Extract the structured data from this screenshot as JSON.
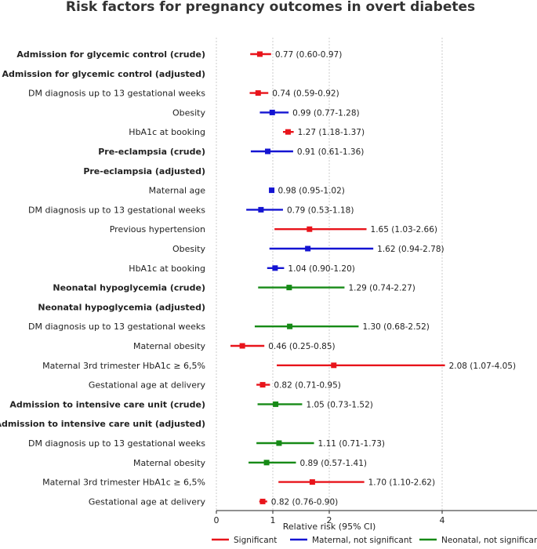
{
  "chart_data": {
    "type": "forest",
    "title": "Risk factors for pregnancy outcomes in overt diabetes",
    "xlabel": "Relative risk (95% CI)",
    "xlim": [
      0,
      4.75
    ],
    "xticks": [
      0,
      1,
      2,
      4
    ],
    "grid": true,
    "reference_line": 1,
    "legend_position": "bottom",
    "legend": [
      {
        "key": "sig",
        "label": "Significant",
        "color": "#e8141b"
      },
      {
        "key": "mat",
        "label": "Maternal, not significant",
        "color": "#1414d2"
      },
      {
        "key": "neo",
        "label": "Neonatal, not significant",
        "color": "#168a16"
      }
    ],
    "rows": [
      {
        "label": "Admission for glycemic control (crude)",
        "header": true,
        "est": 0.77,
        "lo": 0.6,
        "hi": 0.97,
        "text": "0.77 (0.60-0.97)",
        "cat": "sig"
      },
      {
        "label": "Admission for glycemic control (adjusted)",
        "header": true
      },
      {
        "label": "DM diagnosis up to 13 gestational weeks",
        "est": 0.74,
        "lo": 0.59,
        "hi": 0.92,
        "text": "0.74 (0.59-0.92)",
        "cat": "sig"
      },
      {
        "label": "Obesity",
        "est": 0.99,
        "lo": 0.77,
        "hi": 1.28,
        "text": "0.99 (0.77-1.28)",
        "cat": "mat"
      },
      {
        "label": "HbA1c at booking",
        "est": 1.27,
        "lo": 1.18,
        "hi": 1.37,
        "text": "1.27 (1.18-1.37)",
        "cat": "sig"
      },
      {
        "label": "Pre-eclampsia (crude)",
        "header": true,
        "est": 0.91,
        "lo": 0.61,
        "hi": 1.36,
        "text": "0.91 (0.61-1.36)",
        "cat": "mat"
      },
      {
        "label": "Pre-eclampsia (adjusted)",
        "header": true
      },
      {
        "label": "Maternal age",
        "est": 0.98,
        "lo": 0.95,
        "hi": 1.02,
        "text": "0.98 (0.95-1.02)",
        "cat": "mat"
      },
      {
        "label": "DM diagnosis up to 13 gestational weeks",
        "est": 0.79,
        "lo": 0.53,
        "hi": 1.18,
        "text": "0.79 (0.53-1.18)",
        "cat": "mat"
      },
      {
        "label": "Previous hypertension",
        "est": 1.65,
        "lo": 1.03,
        "hi": 2.66,
        "text": "1.65 (1.03-2.66)",
        "cat": "sig"
      },
      {
        "label": "Obesity",
        "est": 1.62,
        "lo": 0.94,
        "hi": 2.78,
        "text": "1.62 (0.94-2.78)",
        "cat": "mat"
      },
      {
        "label": "HbA1c at booking",
        "est": 1.04,
        "lo": 0.9,
        "hi": 1.2,
        "text": "1.04 (0.90-1.20)",
        "cat": "mat"
      },
      {
        "label": "Neonatal hypoglycemia (crude)",
        "header": true,
        "est": 1.29,
        "lo": 0.74,
        "hi": 2.27,
        "text": "1.29 (0.74-2.27)",
        "cat": "neo"
      },
      {
        "label": "Neonatal hypoglycemia (adjusted)",
        "header": true
      },
      {
        "label": "DM diagnosis up to 13 gestational weeks",
        "est": 1.3,
        "lo": 0.68,
        "hi": 2.52,
        "text": "1.30 (0.68-2.52)",
        "cat": "neo"
      },
      {
        "label": "Maternal obesity",
        "est": 0.46,
        "lo": 0.25,
        "hi": 0.85,
        "text": "0.46 (0.25-0.85)",
        "cat": "sig"
      },
      {
        "label": "Maternal 3rd trimester HbA1c ≥ 6,5%",
        "est": 2.08,
        "lo": 1.07,
        "hi": 4.05,
        "text": "2.08 (1.07-4.05)",
        "cat": "sig"
      },
      {
        "label": "Gestational age at delivery",
        "est": 0.82,
        "lo": 0.71,
        "hi": 0.95,
        "text": "0.82 (0.71-0.95)",
        "cat": "sig"
      },
      {
        "label": "Admission to intensive care unit (crude)",
        "header": true,
        "est": 1.05,
        "lo": 0.73,
        "hi": 1.52,
        "text": "1.05 (0.73-1.52)",
        "cat": "neo"
      },
      {
        "label": "Admission to intensive care unit (adjusted)",
        "header": true
      },
      {
        "label": "DM diagnosis up to 13 gestational weeks",
        "est": 1.11,
        "lo": 0.71,
        "hi": 1.73,
        "text": "1.11 (0.71-1.73)",
        "cat": "neo"
      },
      {
        "label": "Maternal obesity",
        "est": 0.89,
        "lo": 0.57,
        "hi": 1.41,
        "text": "0.89 (0.57-1.41)",
        "cat": "neo"
      },
      {
        "label": "Maternal 3rd trimester HbA1c ≥ 6,5%",
        "est": 1.7,
        "lo": 1.1,
        "hi": 2.62,
        "text": "1.70 (1.10-2.62)",
        "cat": "sig"
      },
      {
        "label": "Gestational age at delivery",
        "est": 0.82,
        "lo": 0.76,
        "hi": 0.9,
        "text": "0.82 (0.76-0.90)",
        "cat": "sig"
      }
    ]
  }
}
